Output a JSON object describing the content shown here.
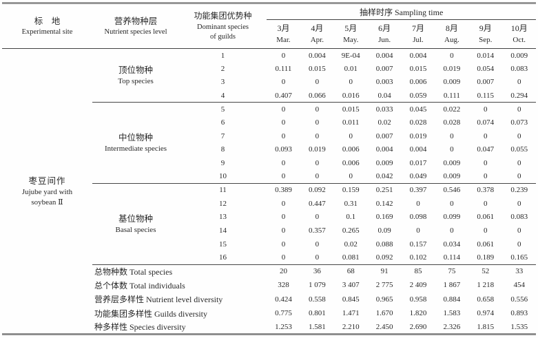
{
  "table": {
    "headers": {
      "site_cn": "标　地",
      "site_en": "Experimental site",
      "level_cn": "营养物种层",
      "level_en": "Nutrient species level",
      "guild_cn": "功能集团优势种",
      "guild_en_1": "Dominant species",
      "guild_en_2": "of guilds",
      "sampling": "抽样时序 Sampling time",
      "months": [
        {
          "cn": "3月",
          "en": "Mar."
        },
        {
          "cn": "4月",
          "en": "Apr."
        },
        {
          "cn": "5月",
          "en": "May."
        },
        {
          "cn": "6月",
          "en": "Jun."
        },
        {
          "cn": "7月",
          "en": "Jul."
        },
        {
          "cn": "8月",
          "en": "Aug."
        },
        {
          "cn": "9月",
          "en": "Sep."
        },
        {
          "cn": "10月",
          "en": "Oct."
        }
      ]
    },
    "site": {
      "cn": "枣豆间作",
      "en1": "Jujube yard with",
      "en2": "soybean Ⅱ"
    },
    "groups": [
      {
        "cn": "顶位物种",
        "en": "Top species",
        "rows": [
          {
            "guild": "1",
            "values": [
              "0",
              "0.004",
              "9E-04",
              "0.004",
              "0.004",
              "0",
              "0.014",
              "0.009"
            ]
          },
          {
            "guild": "2",
            "values": [
              "0.111",
              "0.015",
              "0.01",
              "0.007",
              "0.015",
              "0.019",
              "0.054",
              "0.083"
            ]
          },
          {
            "guild": "3",
            "values": [
              "0",
              "0",
              "0",
              "0.003",
              "0.006",
              "0.009",
              "0.007",
              "0"
            ]
          },
          {
            "guild": "4",
            "values": [
              "0.407",
              "0.066",
              "0.016",
              "0.04",
              "0.059",
              "0.111",
              "0.115",
              "0.294"
            ]
          }
        ]
      },
      {
        "cn": "中位物种",
        "en": "Intermediate species",
        "rows": [
          {
            "guild": "5",
            "values": [
              "0",
              "0",
              "0.015",
              "0.033",
              "0.045",
              "0.022",
              "0",
              "0"
            ]
          },
          {
            "guild": "6",
            "values": [
              "0",
              "0",
              "0.011",
              "0.02",
              "0.028",
              "0.028",
              "0.074",
              "0.073"
            ]
          },
          {
            "guild": "7",
            "values": [
              "0",
              "0",
              "0",
              "0.007",
              "0.019",
              "0",
              "0",
              "0"
            ]
          },
          {
            "guild": "8",
            "values": [
              "0.093",
              "0.019",
              "0.006",
              "0.004",
              "0.004",
              "0",
              "0.047",
              "0.055"
            ]
          },
          {
            "guild": "9",
            "values": [
              "0",
              "0",
              "0.006",
              "0.009",
              "0.017",
              "0.009",
              "0",
              "0"
            ]
          },
          {
            "guild": "10",
            "values": [
              "0",
              "0",
              "0",
              "0.042",
              "0.049",
              "0.009",
              "0",
              "0"
            ]
          }
        ]
      },
      {
        "cn": "基位物种",
        "en": "Basal species",
        "rows": [
          {
            "guild": "11",
            "values": [
              "0.389",
              "0.092",
              "0.159",
              "0.251",
              "0.397",
              "0.546",
              "0.378",
              "0.239"
            ]
          },
          {
            "guild": "12",
            "values": [
              "0",
              "0.447",
              "0.31",
              "0.142",
              "0",
              "0",
              "0",
              "0"
            ]
          },
          {
            "guild": "13",
            "values": [
              "0",
              "0",
              "0.1",
              "0.169",
              "0.098",
              "0.099",
              "0.061",
              "0.083"
            ]
          },
          {
            "guild": "14",
            "values": [
              "0",
              "0.357",
              "0.265",
              "0.09",
              "0",
              "0",
              "0",
              "0"
            ]
          },
          {
            "guild": "15",
            "values": [
              "0",
              "0",
              "0.02",
              "0.088",
              "0.157",
              "0.034",
              "0.061",
              "0"
            ]
          },
          {
            "guild": "16",
            "values": [
              "0",
              "0",
              "0.081",
              "0.092",
              "0.102",
              "0.114",
              "0.189",
              "0.165"
            ]
          }
        ]
      }
    ],
    "summary": [
      {
        "label": "总物种数 Total species",
        "values": [
          "20",
          "36",
          "68",
          "91",
          "85",
          "75",
          "52",
          "33"
        ]
      },
      {
        "label": "总个体数 Total individuals",
        "values": [
          "328",
          "1 079",
          "3 407",
          "2 775",
          "2 409",
          "1 867",
          "1 218",
          "454"
        ]
      },
      {
        "label": "营养层多样性 Nutrient level diversity",
        "values": [
          "0.424",
          "0.558",
          "0.845",
          "0.965",
          "0.958",
          "0.884",
          "0.658",
          "0.556"
        ]
      },
      {
        "label": "功能集团多样性 Guilds diversity",
        "values": [
          "0.775",
          "0.801",
          "1.471",
          "1.670",
          "1.820",
          "1.583",
          "0.974",
          "0.893"
        ]
      },
      {
        "label": "种多样性 Species diversity",
        "values": [
          "1.253",
          "1.581",
          "2.210",
          "2.450",
          "2.690",
          "2.326",
          "1.815",
          "1.535"
        ]
      }
    ]
  }
}
